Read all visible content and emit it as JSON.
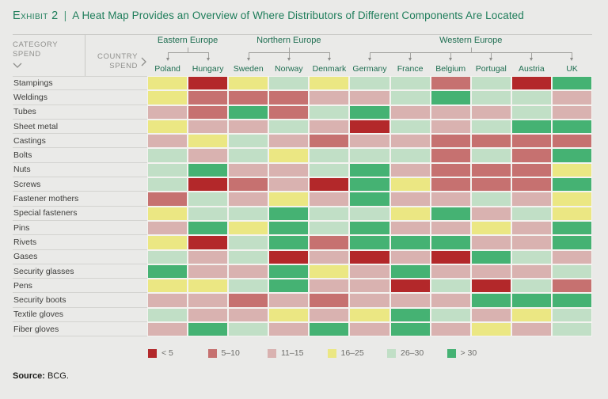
{
  "title": {
    "exhibit": "Exhibit 2",
    "separator": "|",
    "text": "A Heat Map Provides an Overview of Where Distributors of Different Components Are Located"
  },
  "header": {
    "category_spend_label": "Category Spend",
    "country_spend_label": "Country Spend"
  },
  "icons": {
    "category_spend": "chevron-down",
    "country_spend": "chevron-right"
  },
  "colors": {
    "accent_green": "#1e7d5a",
    "label_green": "#1e6e51",
    "page_background": "#eaeae8"
  },
  "chart_data": {
    "type": "heatmap",
    "title": "A Heat Map Provides an Overview of Where Distributors of Different Components Are Located",
    "column_groups": [
      {
        "label": "Eastern Europe",
        "countries": [
          "Poland",
          "Hungary"
        ]
      },
      {
        "label": "Northern Europe",
        "countries": [
          "Sweden",
          "Norway",
          "Denmark"
        ]
      },
      {
        "label": "Western Europe",
        "countries": [
          "Germany",
          "France",
          "Belgium",
          "Portugal",
          "Austria",
          "UK"
        ]
      }
    ],
    "columns": [
      "Poland",
      "Hungary",
      "Sweden",
      "Norway",
      "Denmark",
      "Germany",
      "France",
      "Belgium",
      "Portugal",
      "Austria",
      "UK"
    ],
    "rows": [
      "Stampings",
      "Weldings",
      "Tubes",
      "Sheet metal",
      "Castings",
      "Bolts",
      "Nuts",
      "Screws",
      "Fastener mothers",
      "Special fasteners",
      "Pins",
      "Rivets",
      "Gases",
      "Security glasses",
      "Pens",
      "Security boots",
      "Textile gloves",
      "Fiber gloves"
    ],
    "legend": {
      "position": "bottom",
      "bins": [
        {
          "label": "< 5",
          "color": "#b3282a"
        },
        {
          "label": "5–10",
          "color": "#c67170"
        },
        {
          "label": "11–15",
          "color": "#d9b2b0"
        },
        {
          "label": "16–25",
          "color": "#ebe783"
        },
        {
          "label": "26–30",
          "color": "#c1dfc6"
        },
        {
          "label": "> 30",
          "color": "#45b273"
        }
      ]
    },
    "values_note": "Each cell is an index into legend.bins (0 = '< 5' ... 5 = '> 30'), rows × columns",
    "values": [
      [
        3,
        0,
        3,
        4,
        3,
        4,
        4,
        1,
        4,
        0,
        5
      ],
      [
        3,
        1,
        1,
        1,
        2,
        2,
        4,
        5,
        4,
        4,
        2
      ],
      [
        2,
        1,
        5,
        1,
        4,
        5,
        2,
        2,
        2,
        4,
        2
      ],
      [
        3,
        2,
        2,
        4,
        2,
        0,
        4,
        2,
        4,
        5,
        5
      ],
      [
        2,
        3,
        4,
        2,
        1,
        2,
        2,
        1,
        1,
        1,
        1
      ],
      [
        4,
        2,
        4,
        3,
        4,
        4,
        4,
        1,
        4,
        1,
        5
      ],
      [
        4,
        5,
        2,
        2,
        4,
        5,
        2,
        1,
        1,
        1,
        3
      ],
      [
        4,
        0,
        1,
        2,
        0,
        5,
        3,
        1,
        1,
        1,
        5
      ],
      [
        1,
        4,
        2,
        3,
        2,
        5,
        2,
        2,
        4,
        2,
        3
      ],
      [
        3,
        4,
        4,
        5,
        4,
        4,
        3,
        5,
        2,
        4,
        3
      ],
      [
        2,
        5,
        3,
        5,
        4,
        5,
        2,
        2,
        3,
        2,
        5
      ],
      [
        3,
        0,
        4,
        5,
        1,
        5,
        5,
        5,
        2,
        2,
        5
      ],
      [
        4,
        2,
        4,
        0,
        2,
        0,
        2,
        0,
        5,
        4,
        2
      ],
      [
        5,
        2,
        2,
        5,
        3,
        2,
        5,
        2,
        2,
        2,
        4
      ],
      [
        3,
        3,
        4,
        5,
        2,
        2,
        0,
        4,
        0,
        4,
        1
      ],
      [
        2,
        2,
        1,
        2,
        1,
        2,
        2,
        2,
        5,
        5,
        5
      ],
      [
        4,
        2,
        2,
        3,
        2,
        3,
        5,
        4,
        2,
        3,
        4
      ],
      [
        2,
        5,
        4,
        2,
        5,
        2,
        5,
        2,
        3,
        2,
        4
      ]
    ]
  },
  "footer": {
    "source_label": "Source:",
    "source_value": "BCG."
  }
}
